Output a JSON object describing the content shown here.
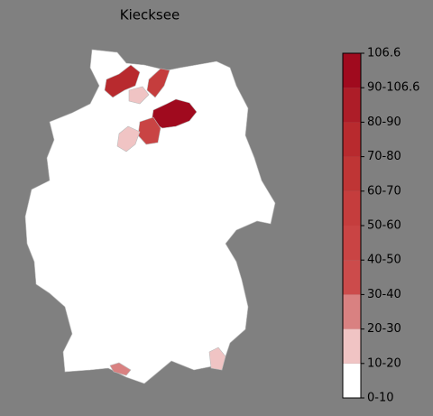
{
  "map": {
    "title": "Kiecksee",
    "legend": {
      "labels": [
        "0-10",
        "10-20",
        "20-30",
        "30-40",
        "40-50",
        "50-60",
        "60-70",
        "70-80",
        "80-90",
        "90-106.6",
        "106.6"
      ],
      "colors": [
        "#ffffff",
        "#f0c4c4",
        "#d98181",
        "#cc4b4b",
        "#c94444",
        "#c53d3d",
        "#bf3535",
        "#b82a2e",
        "#ad1d28",
        "#a00a1e"
      ]
    }
  }
}
